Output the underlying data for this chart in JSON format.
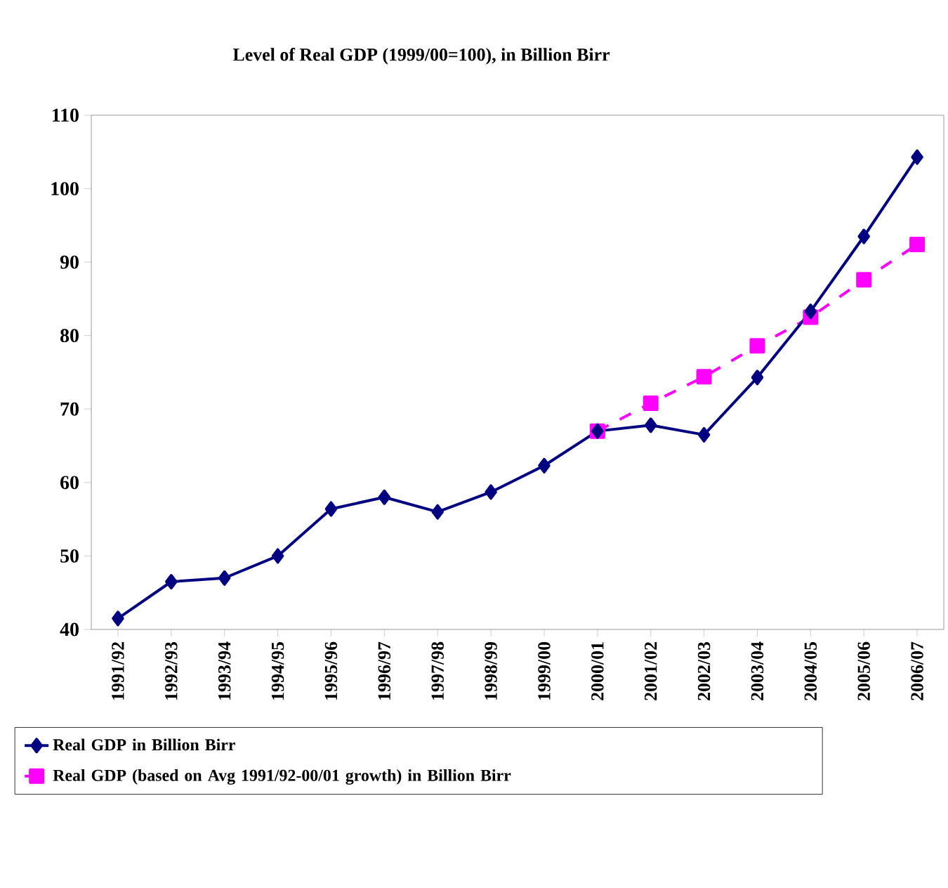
{
  "chart_data": {
    "type": "line",
    "title": "Level of Real GDP (1999/00=100), in Billion Birr",
    "categories": [
      "1991/92",
      "1992/93",
      "1993/94",
      "1994/95",
      "1995/96",
      "1996/97",
      "1997/98",
      "1998/99",
      "1999/00",
      "2000/01",
      "2001/02",
      "2002/03",
      "2003/04",
      "2004/05",
      "2005/06",
      "2006/07"
    ],
    "series": [
      {
        "name": "Real GDP in Billion Birr",
        "color": "#000080",
        "marker": "diamond",
        "line_style": "solid",
        "values": [
          41.5,
          46.5,
          47,
          50,
          56.4,
          58,
          56,
          58.7,
          62.3,
          67,
          67.8,
          66.5,
          74.3,
          83.3,
          93.5,
          104.3
        ]
      },
      {
        "name": "Real GDP (based on Avg 1991/92-00/01 growth) in Billion Birr",
        "color": "#ff00ff",
        "marker": "square",
        "line_style": "dashed",
        "values": [
          null,
          null,
          null,
          null,
          null,
          null,
          null,
          null,
          null,
          67,
          70.8,
          74.4,
          78.6,
          82.5,
          87.6,
          92.4
        ]
      }
    ],
    "ylim": [
      40,
      110
    ],
    "yticks": [
      40,
      50,
      60,
      70,
      80,
      90,
      100,
      110
    ],
    "grid": false,
    "legend": "bottom"
  }
}
